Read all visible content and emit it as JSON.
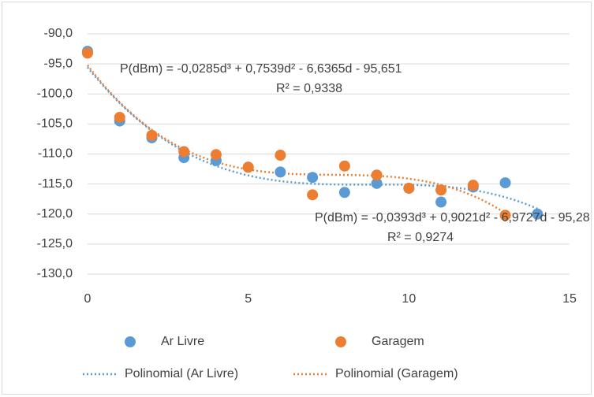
{
  "chart_data": {
    "type": "scatter",
    "x": [
      0,
      1,
      2,
      3,
      4,
      5,
      6,
      7,
      8,
      9,
      10,
      11,
      12,
      13,
      14
    ],
    "series": [
      {
        "name": "Ar Livre",
        "color": "#5b9bd5",
        "trendline_name": "Polinomial (Ar Livre)",
        "values": [
          -92.9,
          -104.5,
          -107.3,
          -110.6,
          -111.1,
          -112.2,
          -113.0,
          -113.9,
          -116.4,
          -114.9,
          -115.7,
          -118.0,
          -115.5,
          -114.8,
          -120.0
        ],
        "equation": "P(dBm) = -0,0285d³ + 0,7539d² - 6,6365d - 95,651",
        "r2": "R² = 0,9338"
      },
      {
        "name": "Garagem",
        "color": "#ed7d31",
        "trendline_name": "Polinomial (Garagem)",
        "values": [
          -93.2,
          -103.9,
          -106.9,
          -109.6,
          -110.1,
          -112.2,
          -110.2,
          -116.8,
          -112.0,
          -113.5,
          -115.7,
          -116.0,
          -115.2,
          -120.2,
          null
        ],
        "equation": "P(dBm) = -0,0393d³ + 0,9021d² - 6,9727d - 95,28",
        "r2": "R² = 0,9274"
      }
    ],
    "xlim": [
      0,
      15
    ],
    "xticks": [
      0,
      5,
      10,
      15
    ],
    "ylim": [
      -130,
      -90
    ],
    "yticks": [
      {
        "value": -130,
        "label": "-130,0"
      },
      {
        "value": -125,
        "label": "-125,0"
      },
      {
        "value": -120,
        "label": "-120,0"
      },
      {
        "value": -115,
        "label": "-115,0"
      },
      {
        "value": -110,
        "label": "-110,0"
      },
      {
        "value": -105,
        "label": "-105,0"
      },
      {
        "value": -100,
        "label": "-100,0"
      },
      {
        "value": -95,
        "label": "-95,0"
      },
      {
        "value": -90,
        "label": "-90,0"
      }
    ],
    "grid": true,
    "legend": "bottom"
  }
}
